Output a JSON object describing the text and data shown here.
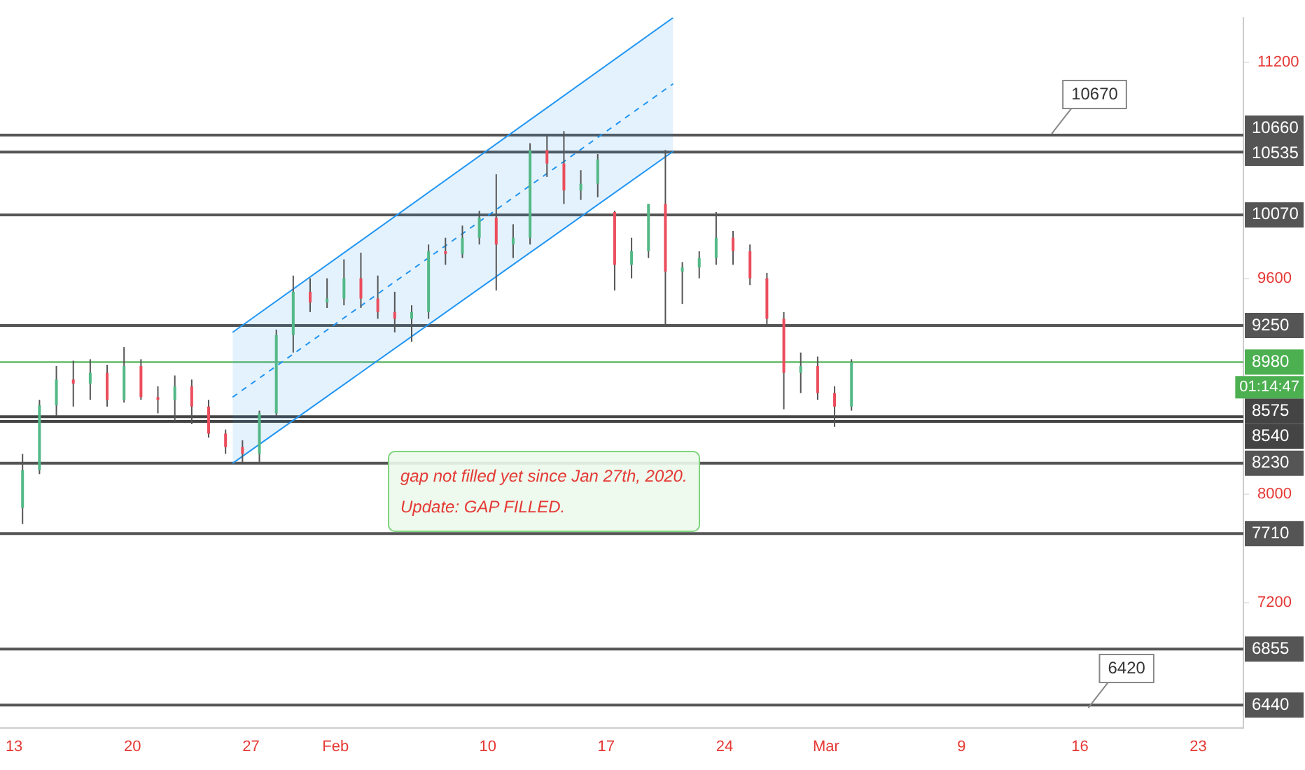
{
  "chart_data": {
    "type": "candlestick",
    "x": [
      "2020-01-13T12:00",
      "2020-01-14T12:00",
      "2020-01-15T12:00",
      "2020-01-16T12:00",
      "2020-01-17T12:00",
      "2020-01-18T12:00",
      "2020-01-19T12:00",
      "2020-01-20T12:00",
      "2020-01-21T12:00",
      "2020-01-22T12:00",
      "2020-01-23T12:00",
      "2020-01-24T12:00",
      "2020-01-25T12:00",
      "2020-01-26T12:00",
      "2020-01-27T12:00",
      "2020-01-28T12:00",
      "2020-01-29T12:00",
      "2020-01-30T12:00",
      "2020-01-31T12:00",
      "2020-02-01T12:00",
      "2020-02-02T12:00",
      "2020-02-03T12:00",
      "2020-02-04T12:00",
      "2020-02-05T12:00",
      "2020-02-06T12:00",
      "2020-02-07T12:00",
      "2020-02-08T12:00",
      "2020-02-09T12:00",
      "2020-02-10T12:00",
      "2020-02-11T12:00",
      "2020-02-12T12:00",
      "2020-02-13T12:00",
      "2020-02-14T12:00",
      "2020-02-15T12:00",
      "2020-02-16T12:00",
      "2020-02-17T12:00",
      "2020-02-18T12:00",
      "2020-02-19T12:00",
      "2020-02-20T12:00",
      "2020-02-21T12:00",
      "2020-02-22T12:00",
      "2020-02-23T12:00",
      "2020-02-24T12:00",
      "2020-02-25T12:00",
      "2020-02-26T12:00",
      "2020-02-27T12:00",
      "2020-02-28T12:00",
      "2020-02-29T12:00",
      "2020-03-01T12:00",
      "2020-03-02T12:00"
    ],
    "ohlc": [
      [
        7900,
        8300,
        7780,
        8180
      ],
      [
        8180,
        8700,
        8150,
        8660
      ],
      [
        8660,
        8950,
        8580,
        8850
      ],
      [
        8850,
        8990,
        8650,
        8820
      ],
      [
        8820,
        9000,
        8700,
        8900
      ],
      [
        8900,
        8960,
        8650,
        8700
      ],
      [
        8700,
        9090,
        8680,
        8950
      ],
      [
        8950,
        9000,
        8700,
        8720
      ],
      [
        8720,
        8800,
        8600,
        8700
      ],
      [
        8700,
        8880,
        8540,
        8800
      ],
      [
        8800,
        8850,
        8520,
        8650
      ],
      [
        8650,
        8700,
        8420,
        8450
      ],
      [
        8450,
        8480,
        8300,
        8350
      ],
      [
        8350,
        8400,
        8230,
        8300
      ],
      [
        8300,
        8620,
        8240,
        8600
      ],
      [
        8600,
        9220,
        8580,
        9180
      ],
      [
        9180,
        9620,
        9050,
        9500
      ],
      [
        9500,
        9600,
        9350,
        9420
      ],
      [
        9420,
        9600,
        9380,
        9450
      ],
      [
        9450,
        9740,
        9400,
        9600
      ],
      [
        9600,
        9790,
        9380,
        9450
      ],
      [
        9450,
        9620,
        9300,
        9350
      ],
      [
        9350,
        9500,
        9200,
        9300
      ],
      [
        9300,
        9400,
        9130,
        9350
      ],
      [
        9350,
        9850,
        9300,
        9800
      ],
      [
        9800,
        9900,
        9700,
        9780
      ],
      [
        9780,
        9990,
        9750,
        9900
      ],
      [
        9900,
        10100,
        9850,
        10050
      ],
      [
        10050,
        10370,
        9510,
        9850
      ],
      [
        9850,
        10000,
        9750,
        9900
      ],
      [
        9900,
        10600,
        9850,
        10550
      ],
      [
        10550,
        10650,
        10350,
        10450
      ],
      [
        10450,
        10690,
        10150,
        10250
      ],
      [
        10250,
        10400,
        10180,
        10300
      ],
      [
        10300,
        10520,
        10200,
        10480
      ],
      [
        10090,
        10100,
        9510,
        9700
      ],
      [
        9700,
        9900,
        9600,
        9800
      ],
      [
        9800,
        10150,
        9750,
        10150
      ],
      [
        10150,
        10550,
        9255,
        9650
      ],
      [
        9650,
        9720,
        9410,
        9680
      ],
      [
        9680,
        9800,
        9600,
        9750
      ],
      [
        9750,
        10090,
        9700,
        9900
      ],
      [
        9900,
        9950,
        9700,
        9800
      ],
      [
        9800,
        9850,
        9550,
        9600
      ],
      [
        9600,
        9640,
        9250,
        9300
      ],
      [
        9300,
        9350,
        8630,
        8900
      ],
      [
        8900,
        9050,
        8750,
        8950
      ],
      [
        8950,
        9020,
        8700,
        8750
      ],
      [
        8750,
        8800,
        8500,
        8650
      ],
      [
        8650,
        9000,
        8620,
        8980
      ]
    ],
    "colors": [
      "#53b987",
      "#53b987",
      "#53b987",
      "#eb4d5c",
      "#53b987",
      "#eb4d5c",
      "#53b987",
      "#eb4d5c",
      "#eb4d5c",
      "#53b987",
      "#eb4d5c",
      "#eb4d5c",
      "#eb4d5c",
      "#eb4d5c",
      "#53b987",
      "#53b987",
      "#53b987",
      "#eb4d5c",
      "#53b987",
      "#53b987",
      "#eb4d5c",
      "#eb4d5c",
      "#eb4d5c",
      "#53b987",
      "#53b987",
      "#eb4d5c",
      "#53b987",
      "#53b987",
      "#eb4d5c",
      "#53b987",
      "#53b987",
      "#eb4d5c",
      "#eb4d5c",
      "#53b987",
      "#53b987",
      "#eb4d5c",
      "#53b987",
      "#53b987",
      "#eb4d5c",
      "#53b987",
      "#53b987",
      "#53b987",
      "#eb4d5c",
      "#eb4d5c",
      "#eb4d5c",
      "#eb4d5c",
      "#53b987",
      "#eb4d5c",
      "#eb4d5c",
      "#53b987"
    ],
    "series": [
      {
        "type": "line",
        "color": "#2196f3",
        "x": [
          "2020-01-25T22:00",
          "2020-02-20T23:00"
        ],
        "values": [
          9200,
          11530
        ]
      },
      {
        "type": "line",
        "color": "#2196f3",
        "line_style": "dashed",
        "x": [
          "2020-01-25T22:00",
          "2020-02-20T23:00"
        ],
        "values": [
          8720,
          11040
        ],
        "lower": [
          8230,
          10540
        ],
        "upper": [
          9200,
          11530
        ]
      },
      {
        "type": "line",
        "color": "#2196f3",
        "x": [
          "2020-01-25T22:00",
          "2020-02-20T23:00"
        ],
        "values": [
          8230,
          10540
        ]
      }
    ],
    "xlim": [
      "2020-01-12T04:00",
      "2020-03-25T16:00"
    ],
    "ylim": [
      6270,
      11530
    ],
    "xticks": [
      {
        "value": "2020-01-13",
        "label": "13"
      },
      {
        "value": "2020-01-20",
        "label": "20"
      },
      {
        "value": "2020-01-27",
        "label": "27"
      },
      {
        "value": "2020-02-01",
        "label": "Feb"
      },
      {
        "value": "2020-02-10",
        "label": "10"
      },
      {
        "value": "2020-02-17",
        "label": "17"
      },
      {
        "value": "2020-02-24",
        "label": "24"
      },
      {
        "value": "2020-03-01",
        "label": "Mar"
      },
      {
        "value": "2020-03-09",
        "label": "9"
      },
      {
        "value": "2020-03-16",
        "label": "16"
      },
      {
        "value": "2020-03-23",
        "label": "23"
      }
    ],
    "yticks": [
      11200,
      9600,
      8000,
      7200
    ],
    "grid": false,
    "legend": false,
    "ref_lines": [
      {
        "axis": "y",
        "value": 10660,
        "label": "10660",
        "color": "#555555"
      },
      {
        "axis": "y",
        "value": 10535,
        "label": "10535",
        "color": "#555555"
      },
      {
        "axis": "y",
        "value": 10070,
        "label": "10070",
        "color": "#555555"
      },
      {
        "axis": "y",
        "value": 9250,
        "label": "9250",
        "color": "#555555"
      },
      {
        "axis": "y",
        "value": 8980,
        "label": "8980",
        "color": "#4caf50"
      },
      {
        "axis": "y",
        "value": 8575,
        "label": "8575",
        "color": "#444444"
      },
      {
        "axis": "y",
        "value": 8540,
        "label": "8540",
        "color": "#444444"
      },
      {
        "axis": "y",
        "value": 8230,
        "label": "8230",
        "color": "#555555"
      },
      {
        "axis": "y",
        "value": 7710,
        "label": "7710",
        "color": "#555555"
      },
      {
        "axis": "y",
        "value": 6855,
        "label": "6855",
        "color": "#555555"
      },
      {
        "axis": "y",
        "value": 6440,
        "label": "6440",
        "color": "#555555"
      }
    ],
    "annotations": [
      "01:14:47",
      "gap not filled yet since Jan 27th, 2020.",
      "Update: GAP FILLED.",
      {
        "text": "10670",
        "x": "2020-03-14T08:00",
        "y": 10670
      },
      {
        "text": "6420",
        "x": "2020-03-16T12:00",
        "y": 6420
      }
    ]
  }
}
